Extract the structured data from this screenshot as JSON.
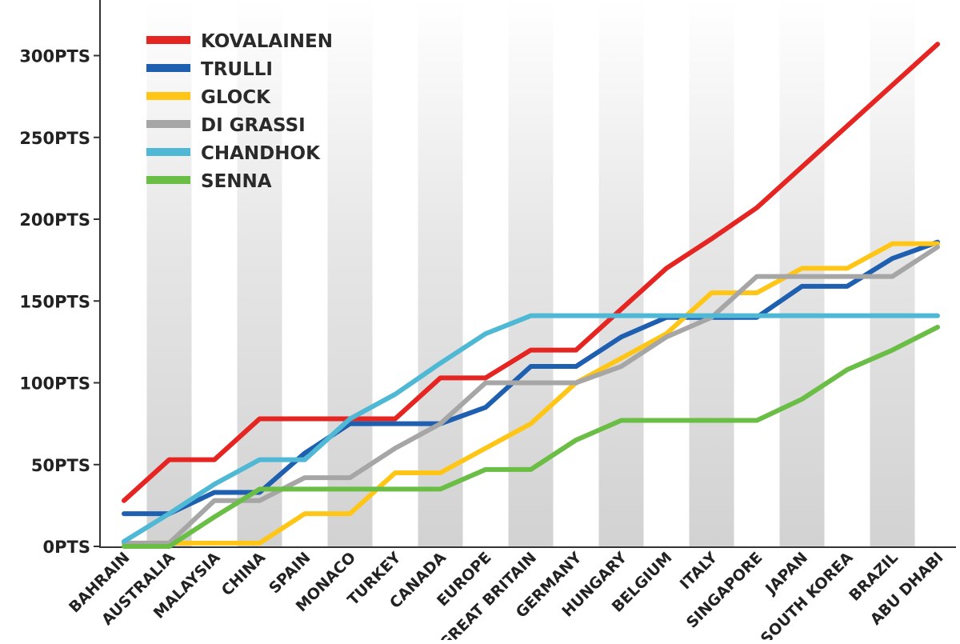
{
  "chart_data": {
    "type": "line",
    "title": "",
    "xlabel": "",
    "ylabel": "",
    "grid": "alternating vertical bands",
    "legend_placement": "top-left",
    "ylim": [
      0,
      300
    ],
    "y_ticks": [
      {
        "value": 0,
        "label": "0PTS"
      },
      {
        "value": 50,
        "label": "50PTS"
      },
      {
        "value": 100,
        "label": "100PTS"
      },
      {
        "value": 150,
        "label": "150PTS"
      },
      {
        "value": 200,
        "label": "200PTS"
      },
      {
        "value": 250,
        "label": "250PTS"
      },
      {
        "value": 300,
        "label": "300PTS"
      }
    ],
    "categories": [
      "BAHRAIN",
      "AUSTRALIA",
      "MALAYSIA",
      "CHINA",
      "SPAIN",
      "MONACO",
      "TURKEY",
      "CANADA",
      "EUROPE",
      "GREAT BRITAIN",
      "GERMANY",
      "HUNGARY",
      "BELGIUM",
      "ITALY",
      "SINGAPORE",
      "JAPAN",
      "SOUTH KOREA",
      "BRAZIL",
      "ABU DHABI"
    ],
    "series": [
      {
        "name": "KOVALAINEN",
        "color": "#e52521",
        "values": [
          28,
          53,
          53,
          78,
          78,
          78,
          78,
          103,
          103,
          120,
          120,
          145,
          170,
          188,
          207,
          232,
          257,
          282,
          307
        ]
      },
      {
        "name": "TRULLI",
        "color": "#1f5fb0",
        "values": [
          20,
          20,
          33,
          33,
          57,
          75,
          75,
          75,
          85,
          110,
          110,
          128,
          140,
          140,
          140,
          159,
          159,
          176,
          186
        ]
      },
      {
        "name": "GLOCK",
        "color": "#ffc617",
        "values": [
          2,
          2,
          2,
          2,
          20,
          20,
          45,
          45,
          60,
          75,
          100,
          115,
          130,
          155,
          155,
          170,
          170,
          185,
          185
        ]
      },
      {
        "name": "DI GRASSI",
        "color": "#a6a6a6",
        "values": [
          2,
          2,
          28,
          28,
          42,
          42,
          60,
          75,
          100,
          100,
          100,
          110,
          128,
          140,
          165,
          165,
          165,
          165,
          183
        ]
      },
      {
        "name": "CHANDHOK",
        "color": "#4fb8d4",
        "values": [
          3,
          20,
          38,
          53,
          53,
          78,
          93,
          112,
          130,
          141,
          141,
          141,
          141,
          141,
          141,
          141,
          141,
          141,
          141
        ]
      },
      {
        "name": "SENNA",
        "color": "#6abd45",
        "values": [
          0,
          0,
          18,
          35,
          35,
          35,
          35,
          35,
          47,
          47,
          65,
          77,
          77,
          77,
          77,
          90,
          108,
          120,
          134
        ]
      }
    ]
  }
}
